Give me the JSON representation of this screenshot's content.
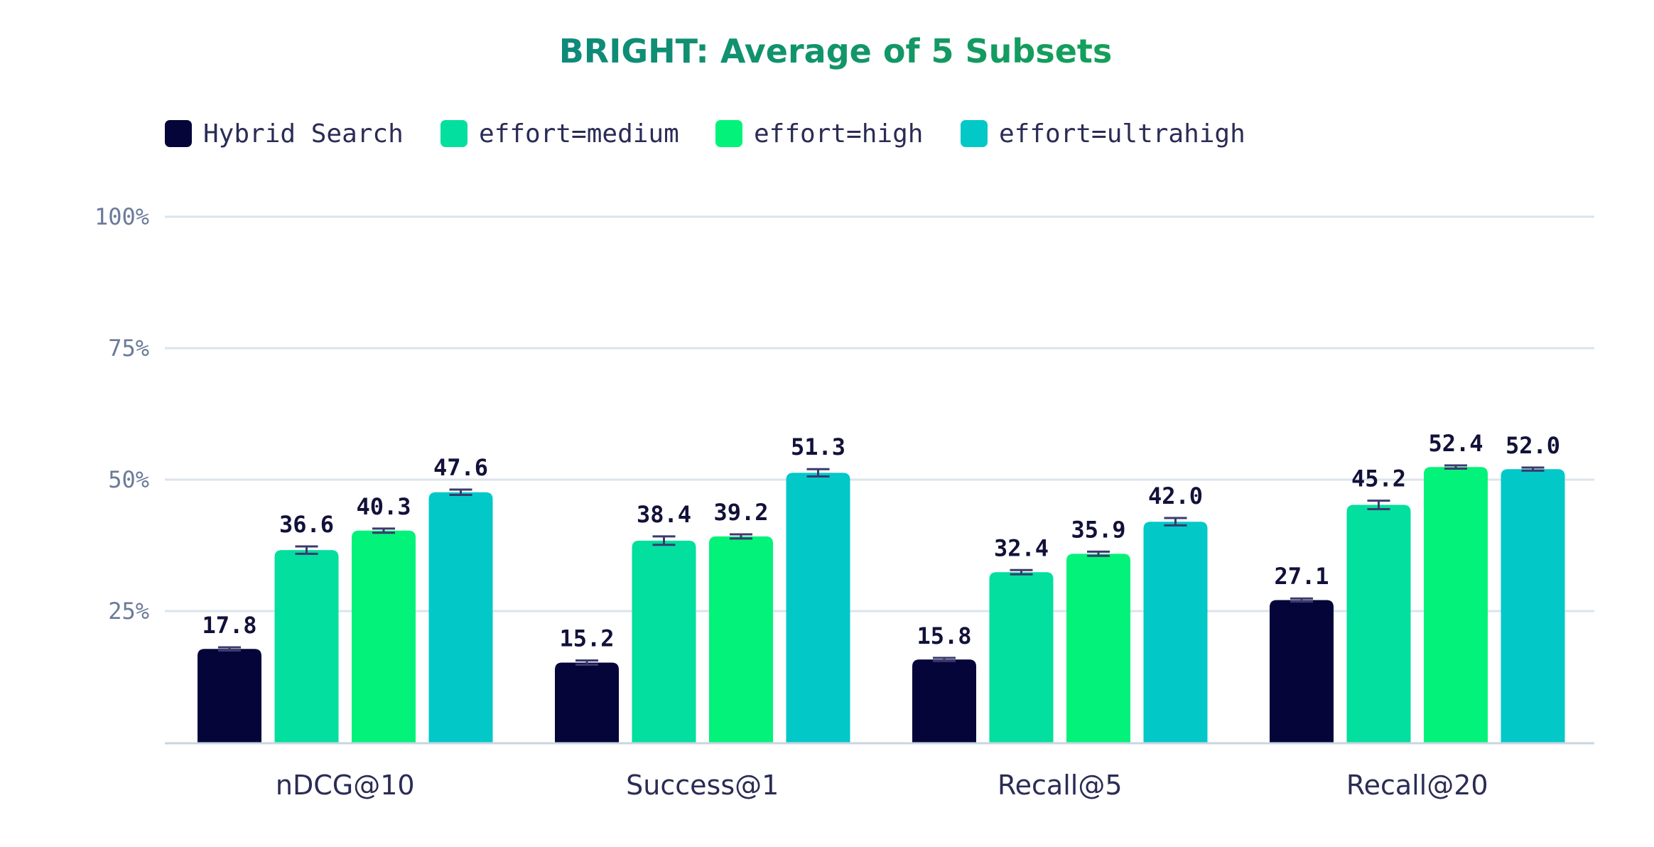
{
  "chart_data": {
    "type": "bar",
    "title": "BRIGHT: Average of 5 Subsets",
    "title_colors": [
      "#0e8a7a",
      "#15a05a"
    ],
    "categories": [
      "nDCG@10",
      "Success@1",
      "Recall@5",
      "Recall@20"
    ],
    "series": [
      {
        "name": "Hybrid Search",
        "color": "#05053a",
        "values": [
          17.8,
          15.2,
          15.8,
          27.1
        ],
        "errors": [
          0.3,
          0.4,
          0.3,
          0.3
        ]
      },
      {
        "name": "effort=medium",
        "color": "#03df9e",
        "values": [
          36.6,
          38.4,
          32.4,
          45.2
        ],
        "errors": [
          0.7,
          0.8,
          0.4,
          0.8
        ]
      },
      {
        "name": "effort=high",
        "color": "#03f27a",
        "values": [
          40.3,
          39.2,
          35.9,
          52.4
        ],
        "errors": [
          0.4,
          0.4,
          0.4,
          0.3
        ]
      },
      {
        "name": "effort=ultrahigh",
        "color": "#03c8c8",
        "values": [
          47.6,
          51.3,
          42.0,
          52.0
        ],
        "errors": [
          0.5,
          0.7,
          0.7,
          0.3
        ]
      }
    ],
    "yticks": [
      {
        "value": 25,
        "label": "25%"
      },
      {
        "value": 50,
        "label": "50%"
      },
      {
        "value": 75,
        "label": "75%"
      },
      {
        "value": 100,
        "label": "100%"
      }
    ],
    "ylim": [
      0,
      100
    ],
    "grid": true,
    "legend_position": "top-left",
    "xlabel": "",
    "ylabel": ""
  }
}
